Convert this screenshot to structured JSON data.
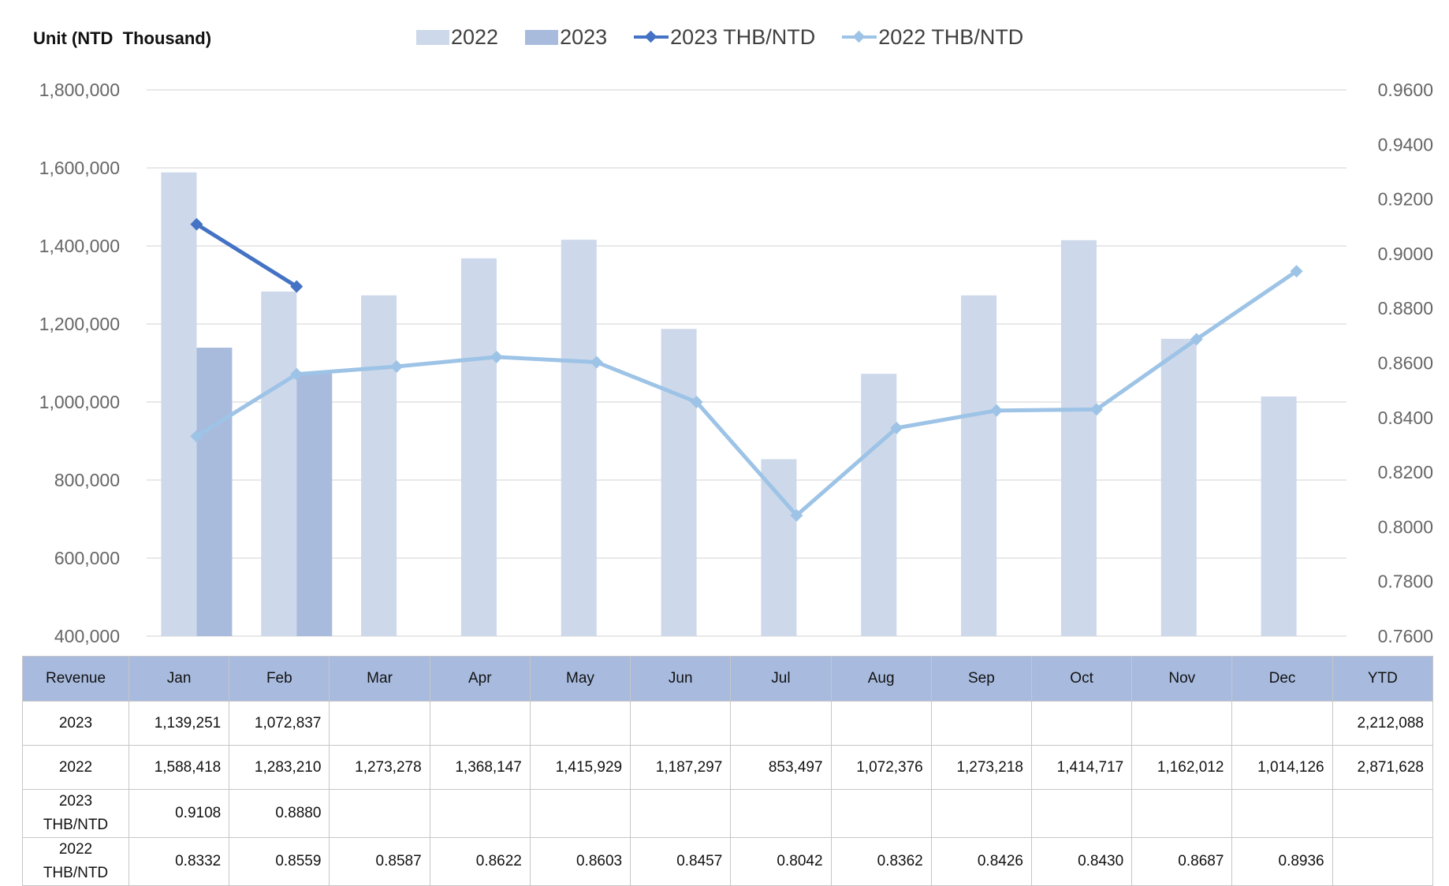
{
  "unit_label": "Unit (NTD  Thousand)",
  "colors": {
    "bar_2022": "#cdd8ea",
    "bar_2023": "#a8bbdd",
    "line_2023": "#4472c4",
    "line_2022": "#9dc3e6",
    "grid": "#d9d9d9",
    "header_bg": "#a8bbdf"
  },
  "chart_data": {
    "type": "bar",
    "categories": [
      "Jan",
      "Feb",
      "Mar",
      "Apr",
      "May",
      "Jun",
      "Jul",
      "Aug",
      "Sep",
      "Oct",
      "Nov",
      "Dec"
    ],
    "series": [
      {
        "name": "2022",
        "type": "bar",
        "axis": "left",
        "values": [
          1588418,
          1283210,
          1273278,
          1368147,
          1415929,
          1187297,
          853497,
          1072376,
          1273218,
          1414717,
          1162012,
          1014126
        ]
      },
      {
        "name": "2023",
        "type": "bar",
        "axis": "left",
        "values": [
          1139251,
          1072837,
          null,
          null,
          null,
          null,
          null,
          null,
          null,
          null,
          null,
          null
        ]
      },
      {
        "name": "2023 THB/NTD",
        "type": "line",
        "axis": "right",
        "values": [
          0.9108,
          0.888,
          null,
          null,
          null,
          null,
          null,
          null,
          null,
          null,
          null,
          null
        ]
      },
      {
        "name": "2022 THB/NTD",
        "type": "line",
        "axis": "right",
        "values": [
          0.8332,
          0.8559,
          0.8587,
          0.8622,
          0.8603,
          0.8457,
          0.8042,
          0.8362,
          0.8426,
          0.843,
          0.8687,
          0.8936
        ]
      }
    ],
    "y_left": {
      "min": 400000,
      "max": 1800000,
      "step": 200000,
      "ticks": [
        "400,000",
        "600,000",
        "800,000",
        "1,000,000",
        "1,200,000",
        "1,400,000",
        "1,600,000",
        "1,800,000"
      ]
    },
    "y_right": {
      "min": 0.76,
      "max": 0.96,
      "step": 0.02,
      "ticks": [
        "0.7600",
        "0.7800",
        "0.8000",
        "0.8200",
        "0.8400",
        "0.8600",
        "0.8800",
        "0.9000",
        "0.9200",
        "0.9400",
        "0.9600"
      ]
    },
    "grid": true,
    "legend_position": "top-center"
  },
  "table": {
    "header": [
      "Revenue",
      "Jan",
      "Feb",
      "Mar",
      "Apr",
      "May",
      "Jun",
      "Jul",
      "Aug",
      "Sep",
      "Oct",
      "Nov",
      "Dec",
      "YTD"
    ],
    "rows": [
      {
        "label": "2023",
        "values": [
          "1,139,251",
          "1,072,837",
          "",
          "",
          "",
          "",
          "",
          "",
          "",
          "",
          "",
          ""
        ],
        "ytd": "2,212,088"
      },
      {
        "label": "2022",
        "values": [
          "1,588,418",
          "1,283,210",
          "1,273,278",
          "1,368,147",
          "1,415,929",
          "1,187,297",
          "853,497",
          "1,072,376",
          "1,273,218",
          "1,414,717",
          "1,162,012",
          "1,014,126"
        ],
        "ytd": "2,871,628"
      },
      {
        "label": "2023 THB/NTD",
        "values": [
          "0.9108",
          "0.8880",
          "",
          "",
          "",
          "",
          "",
          "",
          "",
          "",
          "",
          ""
        ],
        "ytd": ""
      },
      {
        "label": "2022 THB/NTD",
        "values": [
          "0.8332",
          "0.8559",
          "0.8587",
          "0.8622",
          "0.8603",
          "0.8457",
          "0.8042",
          "0.8362",
          "0.8426",
          "0.8430",
          "0.8687",
          "0.8936"
        ],
        "ytd": ""
      }
    ]
  }
}
